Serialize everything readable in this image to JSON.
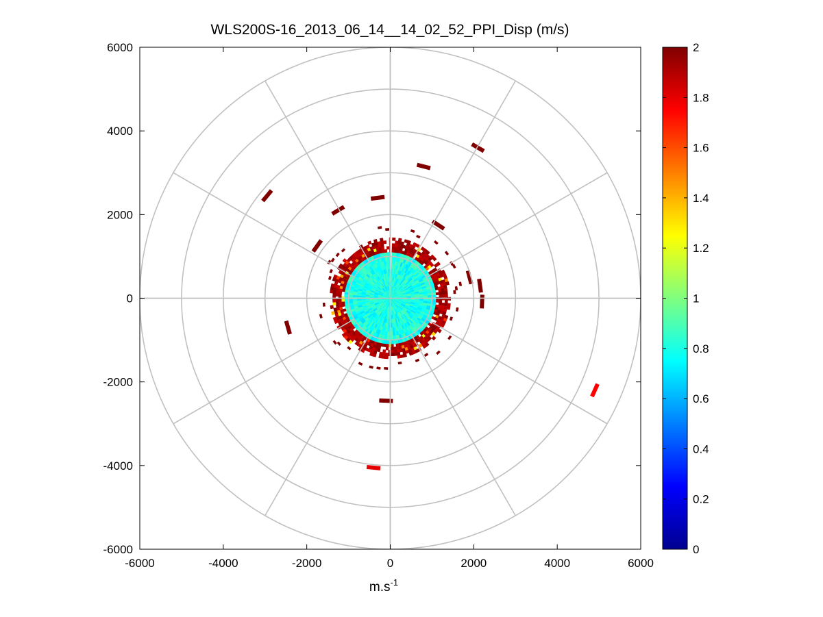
{
  "chart_data": {
    "type": "heatmap",
    "subtype": "polar-ppi-scan",
    "title": "WLS200S-16_2013_06_14__14_02_52_PPI_Disp (m/s)",
    "xlabel": "m.s",
    "xlabel_sup": "-1",
    "ylabel": "",
    "xlim": [
      -6000,
      6000
    ],
    "ylim": [
      -6000,
      6000
    ],
    "xticks": [
      "-6000",
      "-4000",
      "-2000",
      "0",
      "2000",
      "4000",
      "6000"
    ],
    "xtick_values": [
      -6000,
      -4000,
      -2000,
      0,
      2000,
      4000,
      6000
    ],
    "yticks": [
      "6000",
      "4000",
      "2000",
      "0",
      "-2000",
      "-4000",
      "-6000"
    ],
    "ytick_values": [
      6000,
      4000,
      2000,
      0,
      -2000,
      -4000,
      -6000
    ],
    "grid": true,
    "polar_grid": {
      "range_rings": [
        1000,
        2000,
        3000,
        4000,
        5000,
        6000
      ],
      "spoke_angles_deg": [
        0,
        30,
        60,
        90,
        120,
        150,
        180,
        210,
        240,
        270,
        300,
        330
      ]
    },
    "colorbar": {
      "colormap": "jet",
      "min": 0,
      "max": 2,
      "ticks": [
        "0",
        "0.2",
        "0.4",
        "0.6",
        "0.8",
        "1",
        "1.2",
        "1.4",
        "1.6",
        "1.8",
        "2"
      ],
      "tick_values": [
        0,
        0.2,
        0.4,
        0.6,
        0.8,
        1,
        1.2,
        1.4,
        1.6,
        1.8,
        2
      ]
    },
    "scan": {
      "inner_range_m": 1100,
      "inner_value": 0.8,
      "edge_band_range_m": [
        1100,
        1450
      ],
      "edge_value": 2,
      "gap_azimuth_deg": 2
    },
    "sparse_returns": [
      {
        "x": 2100,
        "y": 3600,
        "value": 2
      },
      {
        "x": 800,
        "y": 3150,
        "value": 2
      },
      {
        "x": -300,
        "y": 2400,
        "value": 2
      },
      {
        "x": -1250,
        "y": 2100,
        "value": 2
      },
      {
        "x": -2950,
        "y": 2450,
        "value": 2
      },
      {
        "x": -2450,
        "y": -700,
        "value": 2
      },
      {
        "x": 4900,
        "y": -2200,
        "value": 1.75
      },
      {
        "x": -400,
        "y": -4050,
        "value": 1.8
      },
      {
        "x": -100,
        "y": -2450,
        "value": 2
      },
      {
        "x": 1150,
        "y": 1750,
        "value": 2
      },
      {
        "x": 2150,
        "y": 300,
        "value": 2
      },
      {
        "x": 2200,
        "y": -80,
        "value": 2
      },
      {
        "x": 1900,
        "y": 500,
        "value": 2
      },
      {
        "x": -1750,
        "y": 1250,
        "value": 2
      }
    ]
  }
}
